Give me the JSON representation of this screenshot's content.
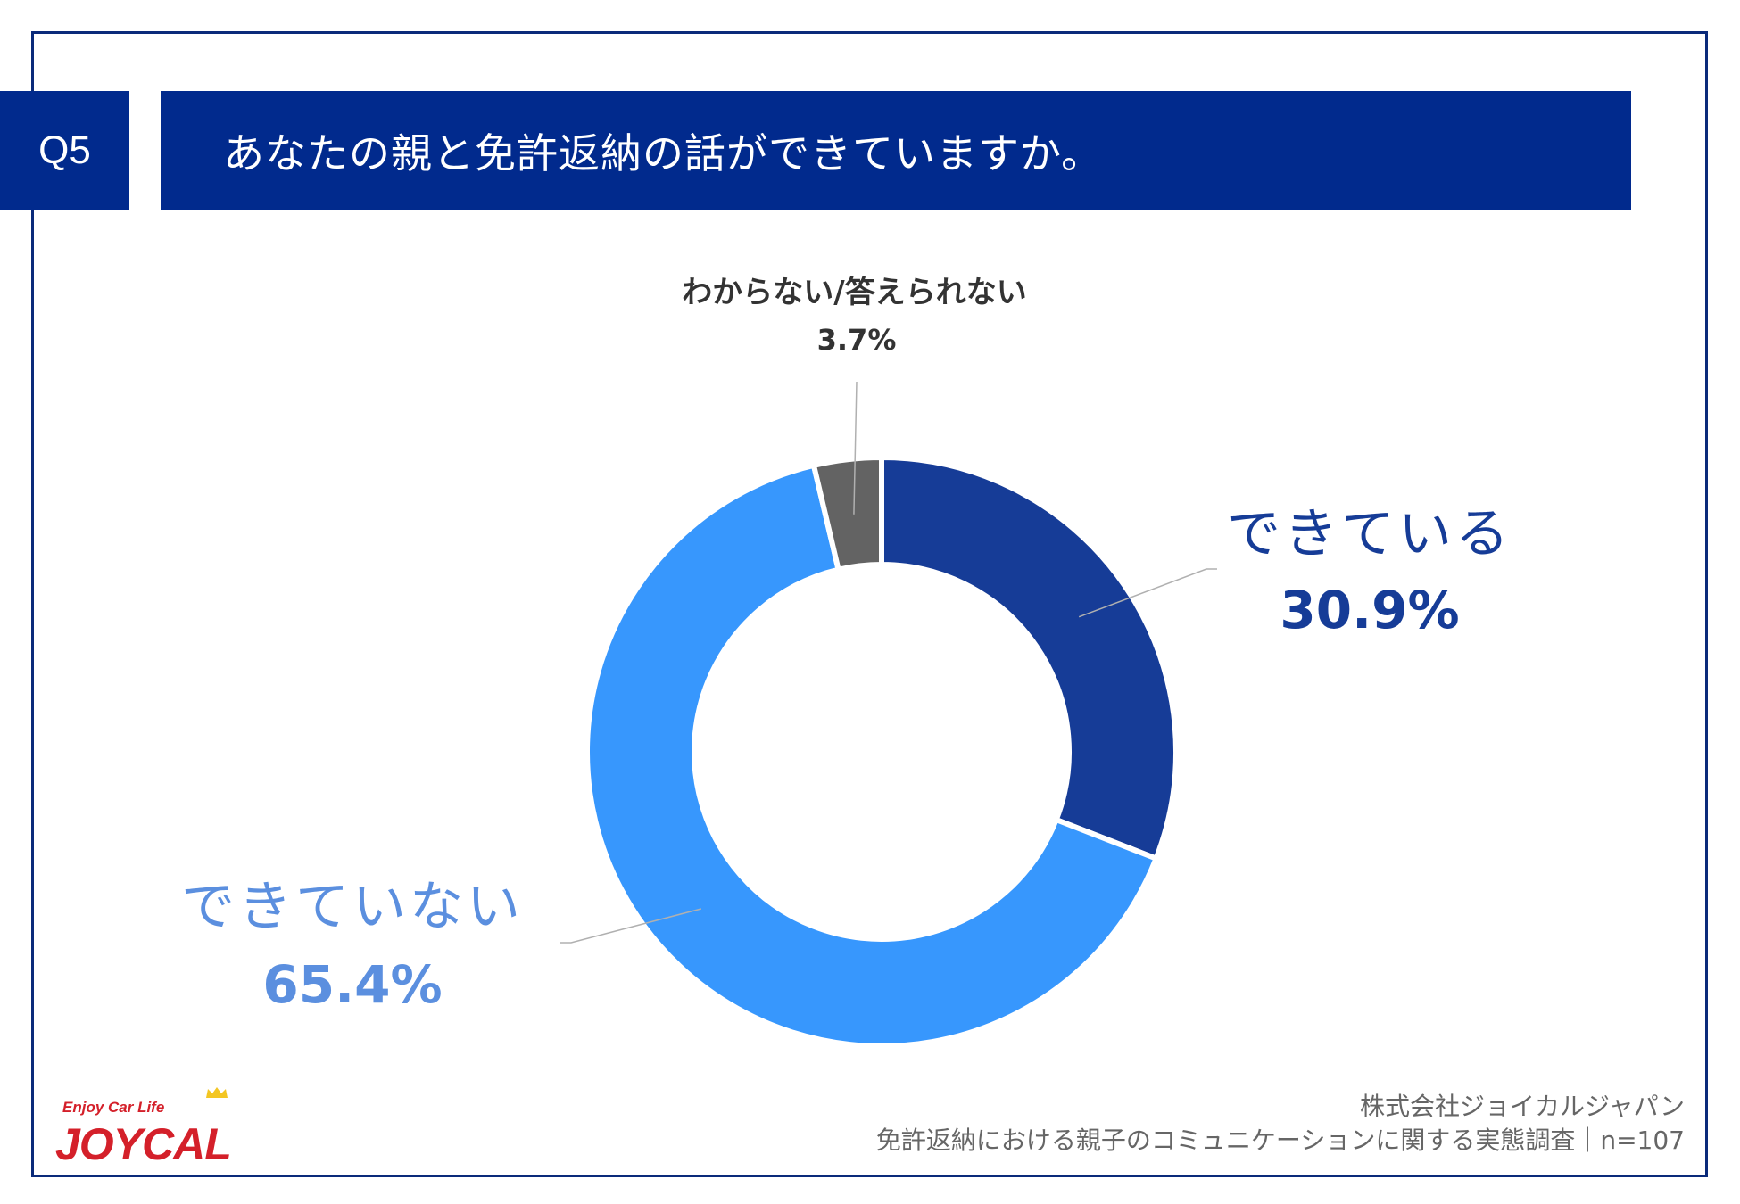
{
  "header": {
    "badge": "Q5",
    "title": "あなたの親と免許返納の話ができていますか。"
  },
  "chart_data": {
    "type": "pie",
    "donut": true,
    "slices": [
      {
        "label": "できている",
        "value": 30.9,
        "value_label": "30.9%",
        "color": "#163c97"
      },
      {
        "label": "できていない",
        "value": 65.4,
        "value_label": "65.4%",
        "color": "#3797fd"
      },
      {
        "label": "わからない/答えられない",
        "value": 3.7,
        "value_label": "3.7%",
        "color": "#636363"
      }
    ],
    "start": "12 o'clock",
    "direction": "clockwise",
    "label_colors": {
      "yes": "#163c97",
      "no": "#5b8fdf",
      "unknown": "#333333"
    }
  },
  "footer": {
    "company": "株式会社ジョイカルジャパン",
    "survey": "免許返納における親子のコミュニケーションに関する実態調査｜n=107"
  },
  "logo": {
    "tagline": "Enjoy Car Life",
    "wordmark": "JOYCAL",
    "brand_color": "#d4202a"
  },
  "colors": {
    "accent": "#012a8d",
    "frame": "#0a2a7a"
  }
}
